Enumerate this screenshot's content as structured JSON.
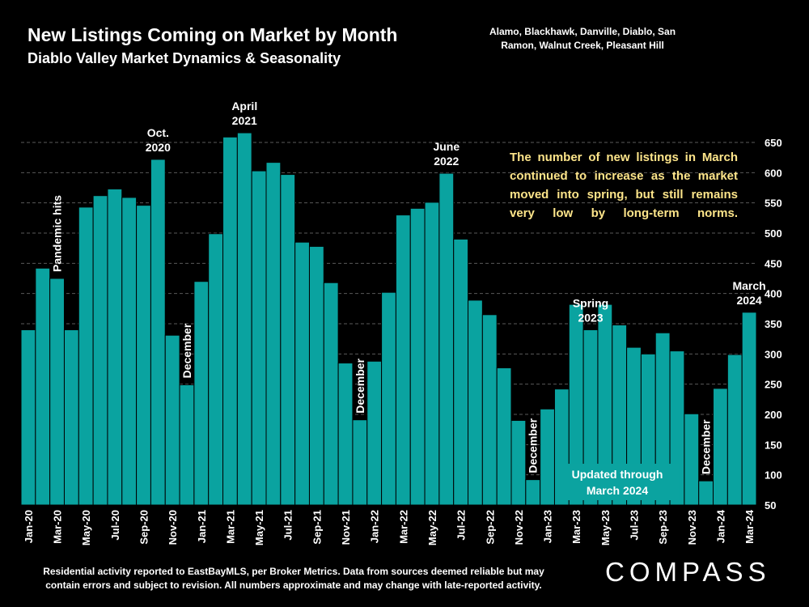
{
  "header": {
    "title": "New Listings Coming on Market by Month",
    "subtitle": "Diablo Valley Market Dynamics & Seasonality",
    "areas_line1": "Alamo, Blackhawk, Danville, Diablo, San",
    "areas_line2": "Ramon, Walnut Creek, Pleasant Hill"
  },
  "note": "The number of new listings in March continued to increase as the market moved into spring, but still remains very low by long-term norms.",
  "updated_line1": "Updated through",
  "updated_line2": "March 2024",
  "footnote_line1": "Residential activity reported to EastBayMLS, per Broker Metrics. Data from sources deemed reliable but may",
  "footnote_line2": "contain errors and subject to revision. All numbers approximate and may change with late-reported activity.",
  "logo": "COMPASS",
  "colors": {
    "bar": "#0aa3a0",
    "note": "#fde58a",
    "background": "#000000"
  },
  "chart_data": {
    "type": "bar",
    "title": "New Listings Coming on Market by Month",
    "ylim": [
      50,
      650
    ],
    "yticks": [
      50,
      100,
      150,
      200,
      250,
      300,
      350,
      400,
      450,
      500,
      550,
      600,
      650
    ],
    "categories": [
      "Jan-20",
      "Feb-20",
      "Mar-20",
      "Apr-20",
      "May-20",
      "Jun-20",
      "Jul-20",
      "Aug-20",
      "Sep-20",
      "Oct-20",
      "Nov-20",
      "Dec-20",
      "Jan-21",
      "Feb-21",
      "Mar-21",
      "Apr-21",
      "May-21",
      "Jun-21",
      "Jul-21",
      "Aug-21",
      "Sep-21",
      "Oct-21",
      "Nov-21",
      "Dec-21",
      "Jan-22",
      "Feb-22",
      "Mar-22",
      "Apr-22",
      "May-22",
      "Jun-22",
      "Jul-22",
      "Aug-22",
      "Sep-22",
      "Oct-22",
      "Nov-22",
      "Dec-22",
      "Jan-23",
      "Feb-23",
      "Mar-23",
      "Apr-23",
      "May-23",
      "Jun-23",
      "Jul-23",
      "Aug-23",
      "Sep-23",
      "Oct-23",
      "Nov-23",
      "Dec-23",
      "Jan-24",
      "Feb-24",
      "Mar-24"
    ],
    "xtick_labels": [
      "Jan-20",
      "Mar-20",
      "May-20",
      "Jul-20",
      "Sep-20",
      "Nov-20",
      "Jan-21",
      "Mar-21",
      "May-21",
      "Jul-21",
      "Sep-21",
      "Nov-21",
      "Jan-22",
      "Mar-22",
      "May-22",
      "Jul-22",
      "Sep-22",
      "Nov-22",
      "Jan-23",
      "Mar-23",
      "May-23",
      "Jul-23",
      "Sep-23",
      "Nov-23",
      "Jan-24",
      "Mar-24"
    ],
    "values": [
      340,
      442,
      425,
      340,
      543,
      562,
      573,
      559,
      546,
      622,
      331,
      249,
      420,
      499,
      659,
      666,
      603,
      617,
      597,
      485,
      478,
      418,
      285,
      191,
      288,
      402,
      530,
      541,
      551,
      599,
      490,
      389,
      365,
      277,
      190,
      92,
      209,
      242,
      382,
      340,
      382,
      348,
      311,
      300,
      335,
      305,
      201,
      90,
      243,
      299,
      369
    ],
    "annotations": [
      {
        "label": "Pandemic hits",
        "index": 2,
        "rotated": true
      },
      {
        "label": "Oct.",
        "label2": "2020",
        "index": 9
      },
      {
        "label": "December",
        "index": 11,
        "rotated": true
      },
      {
        "label": "April",
        "label2": "2021",
        "index": 15
      },
      {
        "label": "December",
        "index": 23,
        "rotated": true
      },
      {
        "label": "June",
        "label2": "2022",
        "index": 29
      },
      {
        "label": "December",
        "index": 35,
        "rotated": true
      },
      {
        "label": "Spring",
        "label2": "2023",
        "index": 39
      },
      {
        "label": "December",
        "index": 47,
        "rotated": true
      },
      {
        "label": "March",
        "label2": "2024",
        "index": 50
      }
    ]
  }
}
